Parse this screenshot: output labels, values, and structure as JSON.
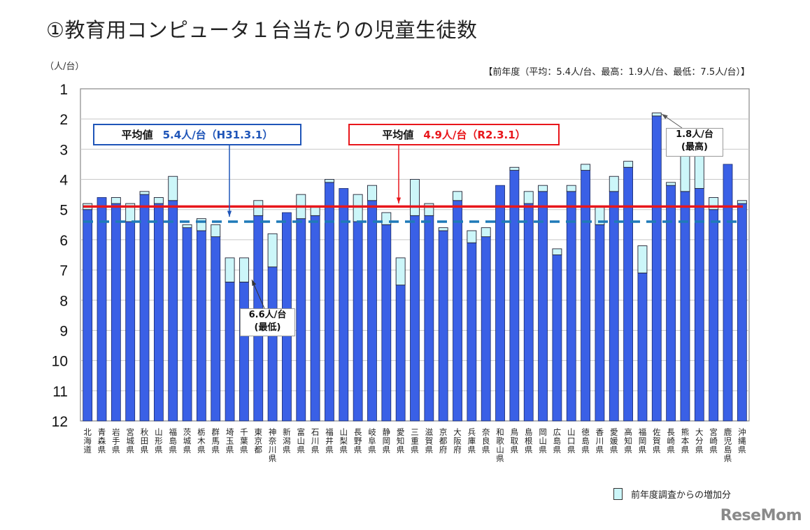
{
  "chart_data": {
    "type": "bar",
    "title": "①教育用コンピュータ１台当たりの児童生徒数",
    "ylabel": "（人/台）",
    "ylim": [
      1,
      12
    ],
    "y_inverted": true,
    "yticks": [
      "1",
      "2",
      "3",
      "4",
      "5",
      "6",
      "7",
      "8",
      "9",
      "10",
      "11",
      "12"
    ],
    "grid": true,
    "previous_year_note": "【前年度（平均：5.4人/台、最高：1.9人/台、最低：7.5人/台）】",
    "categories": [
      "北海道",
      "青森県",
      "岩手県",
      "宮城県",
      "秋田県",
      "山形県",
      "福島県",
      "茨城県",
      "栃木県",
      "群馬県",
      "埼玉県",
      "千葉県",
      "東京都",
      "神奈川県",
      "新潟県",
      "富山県",
      "石川県",
      "福井県",
      "山梨県",
      "長野県",
      "岐阜県",
      "静岡県",
      "愛知県",
      "三重県",
      "滋賀県",
      "京都府",
      "大阪府",
      "兵庫県",
      "奈良県",
      "和歌山県",
      "鳥取県",
      "島根県",
      "岡山県",
      "広島県",
      "山口県",
      "徳島県",
      "香川県",
      "愛媛県",
      "高知県",
      "福岡県",
      "佐賀県",
      "長崎県",
      "熊本県",
      "大分県",
      "宮崎県",
      "鹿児島県",
      "沖縄県"
    ],
    "values_current": [
      4.8,
      4.6,
      4.6,
      4.8,
      4.4,
      4.6,
      3.9,
      5.5,
      5.3,
      5.5,
      6.6,
      6.6,
      4.7,
      5.8,
      5.1,
      4.5,
      4.9,
      4.0,
      4.3,
      4.5,
      4.2,
      5.1,
      6.6,
      4.0,
      4.8,
      5.6,
      4.4,
      5.7,
      5.6,
      4.2,
      3.6,
      4.4,
      4.2,
      6.3,
      4.2,
      3.5,
      4.9,
      3.9,
      3.4,
      6.2,
      1.8,
      4.1,
      3.2,
      3.2,
      4.6,
      3.5,
      4.7
    ],
    "values_previous": [
      5.0,
      4.6,
      4.8,
      5.4,
      4.5,
      4.8,
      4.7,
      5.6,
      5.7,
      5.9,
      7.4,
      7.4,
      5.2,
      6.9,
      5.1,
      5.3,
      5.2,
      4.1,
      4.3,
      5.4,
      4.7,
      5.5,
      7.5,
      5.2,
      5.2,
      5.7,
      4.7,
      6.1,
      5.9,
      4.2,
      3.7,
      4.8,
      4.4,
      6.5,
      4.4,
      3.7,
      5.5,
      4.4,
      3.6,
      7.1,
      1.9,
      4.2,
      4.4,
      4.3,
      5.0,
      3.5,
      4.8
    ],
    "legend": [
      {
        "name": "前年度調査からの増加分",
        "color": "#ccf6f9"
      }
    ],
    "legend_position": "bottom-right",
    "bar_color": "#3a60e6",
    "average_lines": [
      {
        "label": "平均値",
        "value_text": "4.9人/台（R2.3.1）",
        "value": 4.9,
        "color": "#e8161b",
        "style": "solid"
      },
      {
        "label": "平均値",
        "value_text": "5.4人/台（H31.3.1）",
        "value": 5.4,
        "color": "#1f7ab8",
        "style": "dashed"
      }
    ],
    "annotations": {
      "max": {
        "value": "1.8人/台",
        "label": "(最高)"
      },
      "min": {
        "value": "6.6人/台",
        "label": "(最低)"
      }
    }
  },
  "logo": "ReseMom"
}
